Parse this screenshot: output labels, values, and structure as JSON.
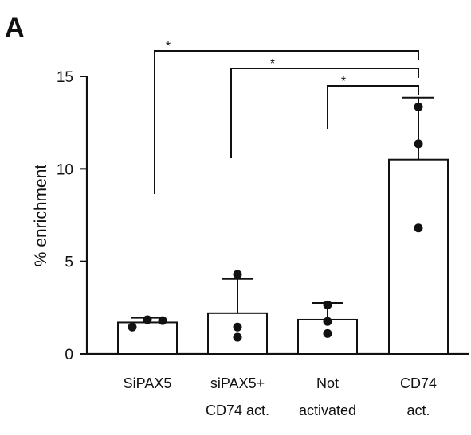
{
  "chart_data": {
    "type": "bar",
    "panel_label": "A",
    "ylabel": "% enrichment",
    "xlabel": "",
    "ylim": [
      0,
      15
    ],
    "yticks": [
      0,
      5,
      10,
      15
    ],
    "categories": [
      [
        "SiPAX5"
      ],
      [
        "siPAX5+",
        "CD74 act."
      ],
      [
        "Not",
        "activated"
      ],
      [
        "CD74",
        "act."
      ]
    ],
    "values": [
      1.7,
      2.2,
      1.85,
      10.5
    ],
    "error_upper": [
      1.95,
      4.05,
      2.75,
      13.85
    ],
    "points": [
      [
        1.45,
        1.85,
        1.8
      ],
      [
        4.3,
        1.45,
        0.9
      ],
      [
        2.65,
        1.75,
        1.1
      ],
      [
        13.35,
        11.35,
        6.8
      ]
    ],
    "significance": [
      {
        "from": 0,
        "to": 3,
        "label": "*"
      },
      {
        "from": 1,
        "to": 3,
        "label": "*"
      },
      {
        "from": 2,
        "to": 3,
        "label": "*"
      }
    ],
    "grid": false,
    "colors": {
      "bar_fill": "#ffffff",
      "bar_stroke": "#111111",
      "point": "#111111"
    }
  }
}
